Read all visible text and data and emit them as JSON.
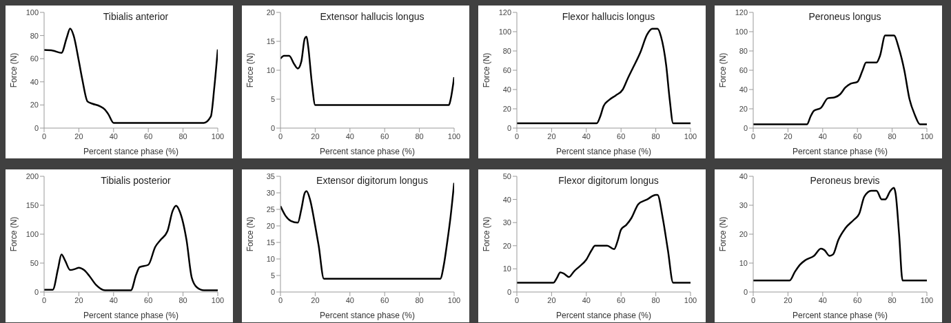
{
  "chart_data": [
    {
      "type": "line",
      "title": "Tibialis anterior",
      "xlabel": "Percent stance phase (%)",
      "ylabel": "Force (N)",
      "xlim": [
        0,
        100
      ],
      "xticks": [
        0,
        20,
        40,
        60,
        80,
        100
      ],
      "ylim": [
        0,
        100
      ],
      "yticks": [
        0,
        20,
        40,
        60,
        80,
        100
      ],
      "grid": false,
      "legend": false,
      "series": [
        {
          "color": "#000000",
          "x": [
            0,
            5,
            10,
            13,
            15,
            17,
            20,
            22,
            25,
            28,
            32,
            35,
            37,
            40,
            60,
            92,
            96,
            98,
            100
          ],
          "values": [
            67.5,
            67,
            65,
            78,
            86,
            80,
            58,
            42,
            23,
            21,
            19,
            16,
            12,
            4.5,
            4.5,
            4.5,
            10,
            35,
            68
          ]
        }
      ]
    },
    {
      "type": "line",
      "title": "Extensor hallucis longus",
      "xlabel": "Percent stance phase (%)",
      "ylabel": "Force (N)",
      "xlim": [
        0,
        100
      ],
      "xticks": [
        0,
        20,
        40,
        60,
        80,
        100
      ],
      "ylim": [
        0,
        20
      ],
      "yticks": [
        0,
        5,
        10,
        15,
        20
      ],
      "grid": false,
      "legend": false,
      "series": [
        {
          "color": "#000000",
          "x": [
            0,
            2,
            5,
            8,
            10,
            12,
            14,
            15,
            16,
            18,
            20,
            97,
            98,
            100
          ],
          "values": [
            12,
            12.5,
            12.5,
            11,
            10.3,
            11.5,
            15.5,
            15.8,
            14,
            8,
            4,
            4,
            5,
            8.8
          ]
        }
      ]
    },
    {
      "type": "line",
      "title": "Flexor hallucis longus",
      "xlabel": "Percent stance phase (%)",
      "ylabel": "Force (N)",
      "xlim": [
        0,
        100
      ],
      "xticks": [
        0,
        20,
        40,
        60,
        80,
        100
      ],
      "ylim": [
        0,
        120
      ],
      "yticks": [
        0,
        20,
        40,
        60,
        80,
        100,
        120
      ],
      "grid": false,
      "legend": false,
      "series": [
        {
          "color": "#000000",
          "x": [
            0,
            46,
            48,
            50,
            53,
            57,
            61,
            64,
            67,
            71,
            75,
            78,
            81,
            83,
            86,
            88,
            90,
            100
          ],
          "values": [
            5,
            5,
            12,
            23,
            29,
            34,
            40,
            52,
            63,
            78,
            97,
            103,
            103,
            95,
            65,
            30,
            5,
            5
          ]
        }
      ]
    },
    {
      "type": "line",
      "title": "Peroneus longus",
      "xlabel": "Percent stance phase (%)",
      "ylabel": "Force (N)",
      "xlim": [
        0,
        100
      ],
      "xticks": [
        0,
        20,
        40,
        60,
        80,
        100
      ],
      "ylim": [
        0,
        120
      ],
      "yticks": [
        0,
        20,
        40,
        60,
        80,
        100,
        120
      ],
      "grid": false,
      "legend": false,
      "series": [
        {
          "color": "#000000",
          "x": [
            0,
            31,
            33,
            35,
            39,
            43,
            47,
            50,
            53,
            56,
            60,
            63,
            65,
            71,
            73,
            76,
            81,
            84,
            87,
            90,
            93,
            96,
            100
          ],
          "values": [
            4,
            4,
            12,
            18,
            21,
            31,
            32,
            35,
            42,
            46,
            48,
            60,
            68,
            68,
            75,
            96,
            96,
            82,
            60,
            30,
            14,
            4,
            4
          ]
        }
      ]
    },
    {
      "type": "line",
      "title": "Tibialis posterior",
      "xlabel": "Percent stance phase (%)",
      "ylabel": "Force (N)",
      "xlim": [
        0,
        100
      ],
      "xticks": [
        0,
        20,
        40,
        60,
        80,
        100
      ],
      "ylim": [
        0,
        200
      ],
      "yticks": [
        0,
        50,
        100,
        150,
        200
      ],
      "grid": false,
      "legend": false,
      "series": [
        {
          "color": "#000000",
          "x": [
            0,
            5,
            8,
            10,
            12,
            15,
            18,
            20,
            23,
            26,
            30,
            35,
            50,
            53,
            55,
            60,
            64,
            67,
            71,
            74,
            76,
            78,
            82,
            85,
            88,
            92,
            100
          ],
          "values": [
            4,
            4,
            40,
            65,
            55,
            38,
            40,
            42,
            38,
            28,
            12,
            3,
            3,
            30,
            43,
            47,
            78,
            90,
            105,
            140,
            149,
            140,
            90,
            25,
            8,
            3,
            3
          ]
        }
      ]
    },
    {
      "type": "line",
      "title": "Extensor digitorum longus",
      "xlabel": "Percent stance phase (%)",
      "ylabel": "Force (N)",
      "xlim": [
        0,
        100
      ],
      "xticks": [
        0,
        20,
        40,
        60,
        80,
        100
      ],
      "ylim": [
        0,
        35
      ],
      "yticks": [
        0,
        5,
        10,
        15,
        20,
        25,
        30,
        35
      ],
      "grid": false,
      "legend": false,
      "series": [
        {
          "color": "#000000",
          "x": [
            0,
            3,
            6,
            10,
            12,
            14,
            15,
            17,
            20,
            22,
            25,
            92,
            94,
            96,
            98,
            100
          ],
          "values": [
            26,
            23,
            21.5,
            21,
            25,
            30,
            30.5,
            28,
            20,
            14,
            4,
            4,
            8,
            15,
            23,
            33
          ]
        }
      ]
    },
    {
      "type": "line",
      "title": "Flexor digitorum longus",
      "xlabel": "Percent stance phase (%)",
      "ylabel": "Force (N)",
      "xlim": [
        0,
        100
      ],
      "xticks": [
        0,
        20,
        40,
        60,
        80,
        100
      ],
      "ylim": [
        0,
        50
      ],
      "yticks": [
        0,
        10,
        20,
        30,
        40,
        50
      ],
      "grid": false,
      "legend": false,
      "series": [
        {
          "color": "#000000",
          "x": [
            0,
            21,
            23,
            25,
            27,
            30,
            33,
            36,
            40,
            43,
            45,
            52,
            56,
            58,
            60,
            63,
            66,
            70,
            75,
            80,
            81,
            84,
            87,
            90,
            100
          ],
          "values": [
            4,
            4,
            6,
            8.5,
            8,
            6.5,
            9,
            11,
            14,
            18,
            20,
            20,
            18.5,
            22,
            27,
            29,
            32,
            38,
            40,
            42,
            42,
            32,
            18,
            4,
            4
          ]
        }
      ]
    },
    {
      "type": "line",
      "title": "Peroneus brevis",
      "xlabel": "Percent stance phase (%)",
      "ylabel": "Force (N)",
      "xlim": [
        0,
        100
      ],
      "xticks": [
        0,
        20,
        40,
        60,
        80,
        100
      ],
      "ylim": [
        0,
        40
      ],
      "yticks": [
        0,
        10,
        20,
        30,
        40
      ],
      "grid": false,
      "legend": false,
      "series": [
        {
          "color": "#000000",
          "x": [
            0,
            21,
            24,
            27,
            30,
            35,
            39,
            41,
            44,
            46,
            49,
            53,
            58,
            61,
            64,
            68,
            71,
            74,
            76,
            79,
            81,
            82,
            84,
            86,
            100
          ],
          "values": [
            4,
            4,
            7,
            9.5,
            11,
            12.5,
            15,
            14.5,
            12.5,
            13,
            18,
            22,
            25,
            27,
            33,
            35,
            35,
            32,
            32,
            35,
            36,
            34,
            20,
            4,
            4
          ]
        }
      ]
    }
  ]
}
